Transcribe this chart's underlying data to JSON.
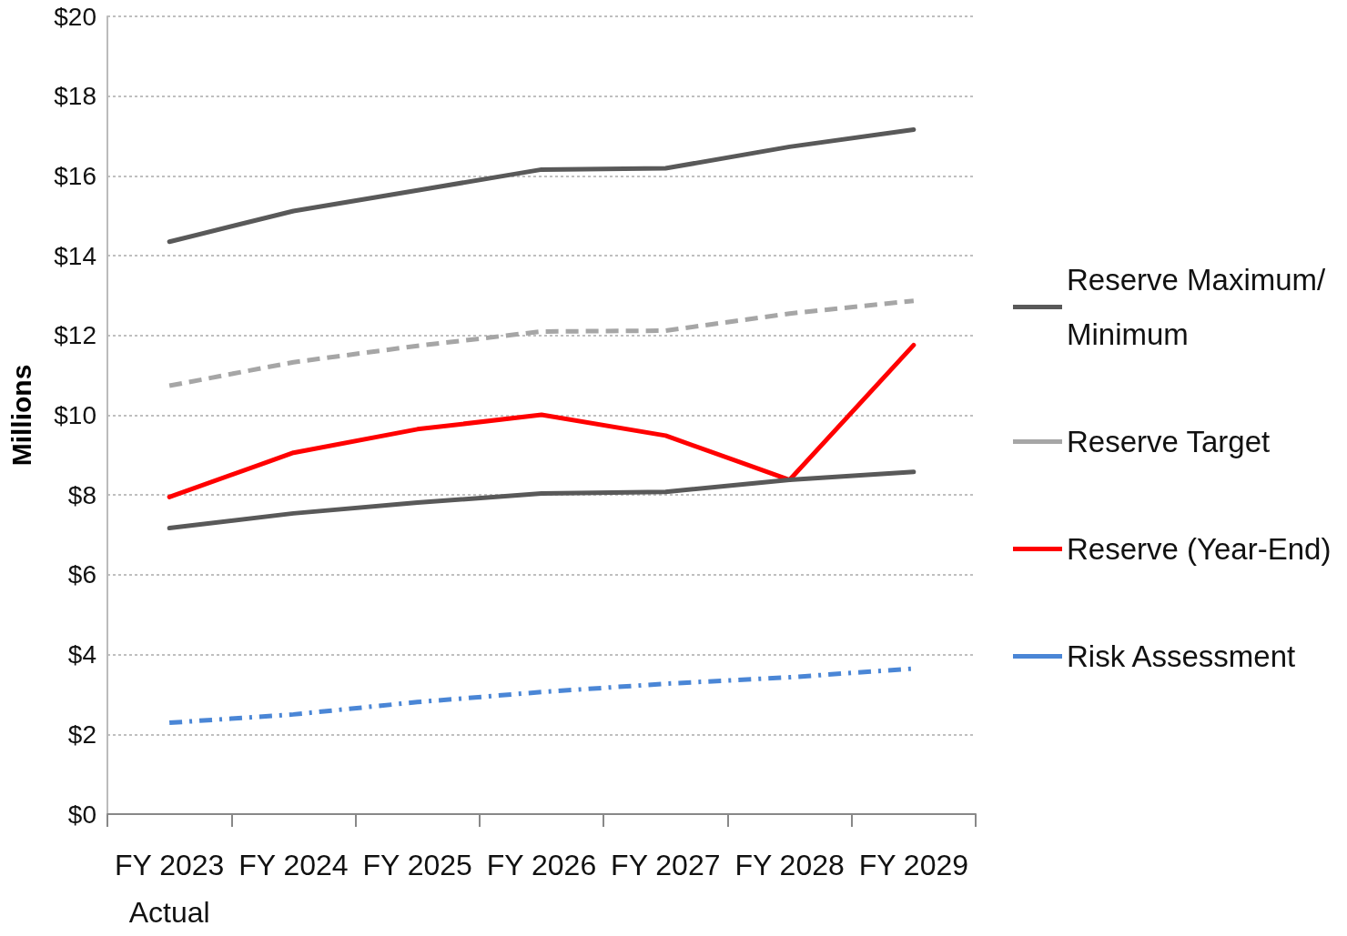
{
  "chart_data": {
    "type": "line",
    "ylabel": "Millions",
    "categories": [
      "FY 2023\nActual",
      "FY 2024",
      "FY 2025",
      "FY 2026",
      "FY 2027",
      "FY 2028",
      "FY 2029"
    ],
    "series": [
      {
        "name": "Reserve Maximum/Minimum",
        "color": "#595959",
        "line_style": "solid",
        "values": [
          14.35,
          15.12,
          15.64,
          16.16,
          16.19,
          16.73,
          17.16
        ]
      },
      {
        "name": "Reserve Target",
        "color": "#a6a6a6",
        "line_style": "dashed",
        "values": [
          10.74,
          11.33,
          11.74,
          12.1,
          12.12,
          12.55,
          12.87
        ]
      },
      {
        "name": "Reserve (Year-End)",
        "color": "#ff0000",
        "line_style": "solid",
        "values": [
          7.95,
          9.06,
          9.65,
          10.01,
          9.49,
          8.38,
          11.76
        ]
      },
      {
        "name": "Risk Assessment",
        "color": "#4a86d6",
        "line_style": "dashdot",
        "values": [
          2.29,
          2.5,
          2.81,
          3.06,
          3.27,
          3.43,
          3.65
        ]
      },
      {
        "color": "#595959",
        "line_style": "solid",
        "values": [
          7.17,
          7.54,
          7.81,
          8.04,
          8.08,
          8.38,
          8.58
        ]
      }
    ],
    "ylim": [
      0,
      20
    ],
    "yticks": [
      {
        "value": 0,
        "label": "$0"
      },
      {
        "value": 2,
        "label": "$2"
      },
      {
        "value": 4,
        "label": "$4"
      },
      {
        "value": 6,
        "label": "$6"
      },
      {
        "value": 8,
        "label": "$8"
      },
      {
        "value": 10,
        "label": "$10"
      },
      {
        "value": 12,
        "label": "$12"
      },
      {
        "value": 14,
        "label": "$14"
      },
      {
        "value": 16,
        "label": "$16"
      },
      {
        "value": 18,
        "label": "$18"
      },
      {
        "value": 20,
        "label": "$20"
      }
    ],
    "grid": "y",
    "legend": "right",
    "marker": "none"
  }
}
